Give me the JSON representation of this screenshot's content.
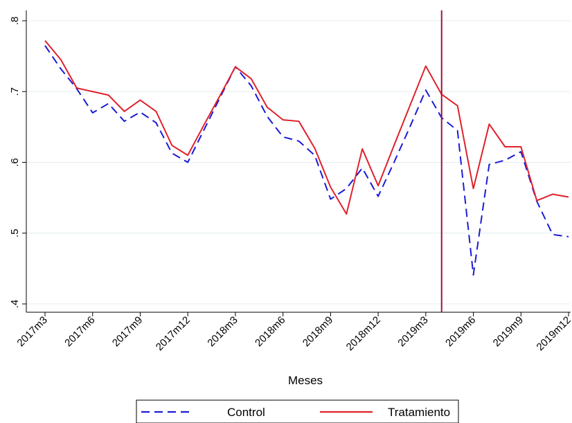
{
  "chart_data": {
    "type": "line",
    "title": "",
    "xlabel": "Meses",
    "ylabel": "",
    "ylim": [
      0.4,
      0.8
    ],
    "yticks": [
      ".4",
      ".5",
      ".6",
      ".7",
      ".8"
    ],
    "ytick_values": [
      0.4,
      0.5,
      0.6,
      0.7,
      0.8
    ],
    "x": [
      "2017m3",
      "2017m4",
      "2017m5",
      "2017m6",
      "2017m7",
      "2017m8",
      "2017m9",
      "2017m10",
      "2017m11",
      "2017m12",
      "2018m1",
      "2018m2",
      "2018m3",
      "2018m4",
      "2018m5",
      "2018m6",
      "2018m7",
      "2018m8",
      "2018m9",
      "2018m10",
      "2018m11",
      "2018m12",
      "2019m1",
      "2019m2",
      "2019m3",
      "2019m4",
      "2019m5",
      "2019m6",
      "2019m7",
      "2019m8",
      "2019m9",
      "2019m10",
      "2019m11",
      "2019m12"
    ],
    "xticks": [
      "2017m3",
      "2017m6",
      "2017m9",
      "2017m12",
      "2018m3",
      "2018m6",
      "2018m9",
      "2018m12",
      "2019m3",
      "2019m6",
      "2019m9",
      "2019m12"
    ],
    "grid": true,
    "legend": "bottom",
    "vline": {
      "x": "2019m4",
      "color": "#a0123a"
    },
    "series": [
      {
        "name": "Control",
        "color": "#1a1ad6",
        "style": "dashed",
        "values": [
          0.765,
          0.732,
          0.704,
          0.67,
          0.683,
          0.658,
          0.671,
          0.656,
          0.613,
          0.6,
          0.645,
          0.69,
          0.735,
          0.708,
          0.665,
          0.636,
          0.63,
          0.61,
          0.548,
          0.563,
          0.592,
          0.552,
          0.6,
          0.65,
          0.702,
          0.663,
          0.645,
          0.441,
          0.597,
          0.603,
          0.615,
          0.545,
          0.498,
          0.495
        ]
      },
      {
        "name": "Tratamiento",
        "color": "#e0202a",
        "style": "solid",
        "values": [
          0.772,
          0.745,
          0.705,
          0.7,
          0.695,
          0.672,
          0.688,
          0.672,
          0.624,
          0.61,
          0.652,
          0.693,
          0.735,
          0.718,
          0.678,
          0.66,
          0.658,
          0.62,
          0.565,
          0.527,
          0.619,
          0.567,
          0.624,
          0.68,
          0.736,
          0.696,
          0.68,
          0.563,
          0.654,
          0.622,
          0.622,
          0.546,
          0.555,
          0.551
        ]
      }
    ]
  }
}
